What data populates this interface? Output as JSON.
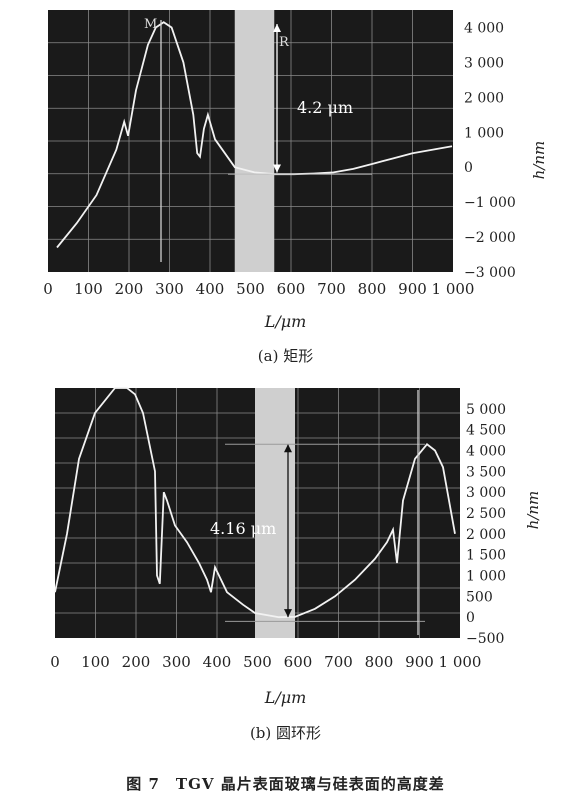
{
  "chart_data": [
    {
      "type": "line",
      "panel_label": "(a) 矩形",
      "xlabel": "L/μm",
      "ylabel": "h/nm",
      "xlim": [
        0,
        1000
      ],
      "ylim": [
        -3000,
        4500
      ],
      "x_ticks": [
        "0",
        "100",
        "200",
        "300",
        "400",
        "500",
        "600",
        "700",
        "800",
        "900",
        "1 000"
      ],
      "y_ticks": [
        "4 000",
        "3 000",
        "2 000",
        "1 000",
        "0",
        "−1 000",
        "−2 000",
        "−3 000"
      ],
      "y_tick_values": [
        4000,
        3000,
        2000,
        1000,
        0,
        -1000,
        -2000,
        -3000
      ],
      "annotation": "4.2 μm",
      "marker_labels": [
        "M",
        "R"
      ],
      "highlight_band_x": [
        450,
        550
      ],
      "series": [
        {
          "x": [
            0,
            50,
            100,
            150,
            170,
            180,
            200,
            230,
            250,
            270,
            290,
            320,
            345,
            355,
            362,
            372,
            382,
            400,
            450,
            500,
            550,
            600,
            650,
            700,
            750,
            800,
            850,
            900,
            950,
            1000
          ],
          "values": [
            -2300,
            -1600,
            -800,
            500,
            1300,
            900,
            2200,
            3500,
            4000,
            4150,
            4000,
            3000,
            1500,
            400,
            300,
            1100,
            1500,
            800,
            0,
            -150,
            -200,
            -200,
            -180,
            -150,
            -50,
            100,
            250,
            400,
            500,
            600
          ]
        }
      ]
    },
    {
      "type": "line",
      "panel_label": "(b) 圆环形",
      "xlabel": "L/μm",
      "ylabel": "h/nm",
      "xlim": [
        0,
        1000
      ],
      "ylim": [
        -500,
        5500
      ],
      "x_ticks": [
        "0",
        "100",
        "200",
        "300",
        "400",
        "500",
        "600",
        "700",
        "800",
        "900",
        "1 000"
      ],
      "y_ticks": [
        "5 000",
        "4 500",
        "4 000",
        "3 500",
        "3 000",
        "2 500",
        "2 000",
        "1 500",
        "1 000",
        "500",
        "0",
        "−500"
      ],
      "y_tick_values": [
        5000,
        4500,
        4000,
        3500,
        3000,
        2500,
        2000,
        1500,
        1000,
        500,
        0,
        -500
      ],
      "annotation": "4.16 μm",
      "highlight_band_x": [
        500,
        600
      ],
      "series": [
        {
          "x": [
            0,
            30,
            60,
            100,
            150,
            180,
            200,
            220,
            250,
            255,
            262,
            272,
            280,
            300,
            330,
            360,
            380,
            390,
            400,
            430,
            470,
            500,
            530,
            560,
            600,
            650,
            700,
            750,
            800,
            830,
            845,
            855,
            870,
            900,
            930,
            950,
            970,
            1000
          ],
          "values": [
            600,
            2000,
            3800,
            4900,
            5500,
            5500,
            5350,
            4900,
            3500,
            1000,
            800,
            3000,
            2800,
            2200,
            1800,
            1300,
            900,
            600,
            1200,
            600,
            300,
            100,
            50,
            0,
            10,
            200,
            500,
            900,
            1400,
            1800,
            2100,
            1300,
            2800,
            3800,
            4150,
            4000,
            3600,
            2000
          ]
        }
      ]
    }
  ],
  "figure_caption": "图 7　TGV 晶片表面玻璃与硅表面的高度差"
}
